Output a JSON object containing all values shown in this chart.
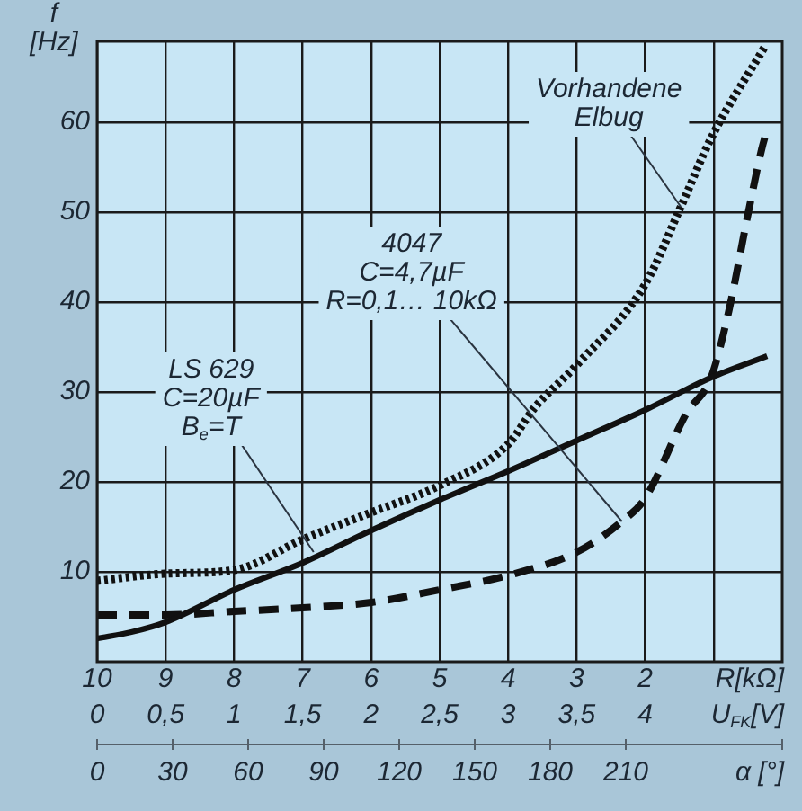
{
  "chart_data": {
    "type": "line",
    "xlabel": "U$_{FK}$[V]",
    "x2label": "R[kΩ]",
    "ylabel": "f [Hz]",
    "xlim": [
      0,
      5
    ],
    "xticks": [
      0,
      {
        "value": 0.5,
        "label": "0,5"
      },
      1,
      {
        "value": 1.5,
        "label": "1,5"
      },
      2,
      {
        "value": 2.5,
        "label": "2,5"
      },
      3,
      {
        "value": 3.5,
        "label": "3,5"
      },
      4,
      {
        "value": 4.5,
        "label": null
      }
    ],
    "x2lim": [
      10,
      0
    ],
    "x2ticks": [
      10,
      9,
      8,
      7,
      6,
      5,
      4,
      3,
      2
    ],
    "ylim": [
      0,
      69
    ],
    "yticks": [
      10,
      20,
      30,
      40,
      50,
      60
    ],
    "grid": true,
    "legend": false,
    "series": [
      {
        "color": "#111111",
        "line_style": "solid",
        "x": [
          0,
          0.25,
          0.5,
          1,
          1.5,
          2,
          2.5,
          3,
          3.5,
          4,
          4.48,
          4.89
        ],
        "values": [
          2.6,
          3.3,
          4.4,
          8,
          11,
          14.6,
          18,
          21.2,
          24.6,
          28,
          31.6,
          34
        ]
      },
      {
        "color": "#111111",
        "line_style": "dotted",
        "x": [
          0,
          0.5,
          1,
          1.5,
          2,
          2.5,
          3,
          3.19,
          3.5,
          4,
          4.26,
          4.48,
          4.88
        ],
        "values": [
          9,
          9.8,
          10.2,
          13.6,
          16.6,
          19.6,
          24.2,
          28.2,
          33,
          42,
          50.6,
          58.2,
          68.6
        ]
      },
      {
        "color": "#111111",
        "line_style": "dashed",
        "x": [
          0,
          0.5,
          1,
          1.5,
          2,
          2.5,
          3,
          3.5,
          3.83,
          4,
          4.3,
          4.48,
          4.61,
          4.74,
          4.85,
          4.89
        ],
        "values": [
          5.2,
          5.2,
          5.6,
          6,
          6.6,
          8,
          9.6,
          12.2,
          15.6,
          18.2,
          27.6,
          31.6,
          39,
          49,
          57,
          59.2
        ]
      }
    ],
    "annotations": [
      {
        "text": "Vorhandene\nElbug",
        "x": 4.26,
        "y": 50.6
      },
      {
        "text": "4047\nC=4,7µF\nR=0,1… 10kΩ",
        "x": 3.83,
        "y": 15.6
      },
      {
        "text": "LS 629\nC=20µF\nB$_{e}$=T",
        "x": 1.58,
        "y": 12.2
      },
      "0",
      "30",
      "60",
      "90",
      "120",
      "150",
      "180",
      "210",
      "α [°]"
    ]
  }
}
